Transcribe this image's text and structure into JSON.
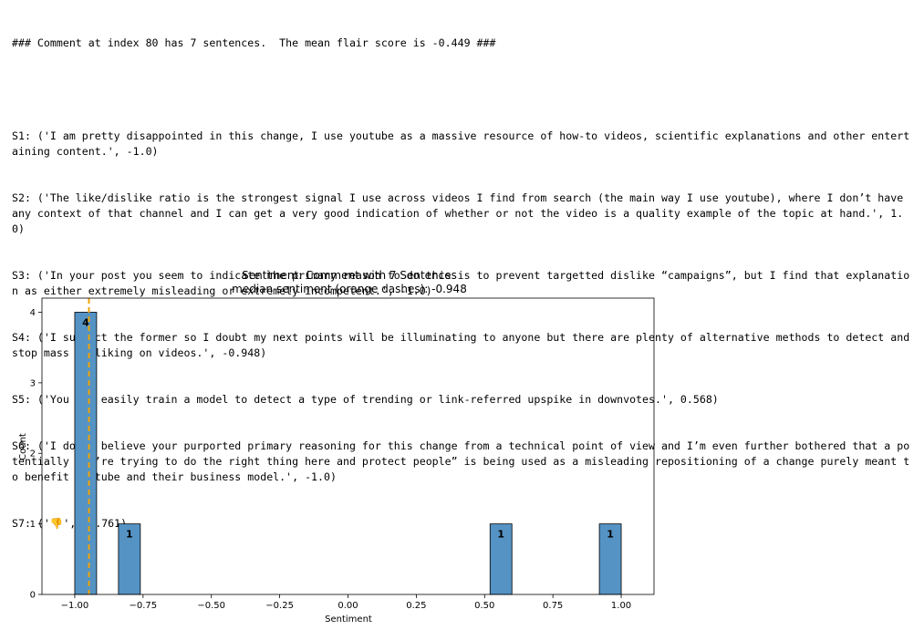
{
  "output": {
    "header": "### Comment at index 80 has 7 sentences.  The mean flair score is -0.449 ###",
    "sentences": [
      "S1: ('I am pretty disappointed in this change, I use youtube as a massive resource of how-to videos, scientific explanations and other entertaining content.', -1.0)",
      "S2: ('The like/dislike ratio is the strongest signal I use across videos I find from search (the main way I use youtube), where I don’t have any context of that channel and I can get a very good indication of whether or not the video is a quality example of the topic at hand.', 1.0)",
      "S3: ('In your post you seem to indicate the primary reason to do this is to prevent targetted dislike “campaigns”, but I find that explanation as either extremely misleading or extremely incompetent.', -1.0)",
      "S4: ('I suspect the former so I doubt my next points will be illuminating to anyone but there are plenty of alternative methods to detect and stop mass disliking on videos.', -0.948)",
      "S5: ('You can easily train a model to detect a type of trending or link-referred upspike in downvotes.', 0.568)",
      "S6: ('I don’t believe your purported primary reasoning for this change from a technical point of view and I’m even further bothered that a potentially “we’re trying to do the right thing here and protect people” is being used as a misleading repositioning of a change purely meant to benefit youtube and their business model.', -1.0)",
      "S7: ('👎', -0.761)"
    ]
  },
  "chart_data": {
    "type": "bar",
    "title": "Sentiment: Comment with 7 Sentences",
    "subtitle": "median sentiment (orange dashes): -0.948",
    "xlabel": "Sentiment",
    "ylabel": "Count",
    "xlim": [
      -1.12,
      1.12
    ],
    "ylim": [
      0,
      4.2
    ],
    "xticks": [
      -1.0,
      -0.75,
      -0.5,
      -0.25,
      0.0,
      0.25,
      0.5,
      0.75,
      1.0
    ],
    "xtick_labels": [
      "−1.00",
      "−0.75",
      "−0.50",
      "−0.25",
      "0.00",
      "0.25",
      "0.50",
      "0.75",
      "1.00"
    ],
    "yticks": [
      0,
      1,
      2,
      3,
      4
    ],
    "bins": [
      {
        "x0": -1.0,
        "x1": -0.92,
        "count": 4,
        "label": "4"
      },
      {
        "x0": -0.84,
        "x1": -0.76,
        "count": 1,
        "label": "1"
      },
      {
        "x0": 0.52,
        "x1": 0.6,
        "count": 1,
        "label": "1"
      },
      {
        "x0": 0.92,
        "x1": 1.0,
        "count": 1,
        "label": "1"
      }
    ],
    "median": -0.948,
    "colors": {
      "bar": "#5593c4",
      "bar_edge": "#000000",
      "median_line": "#f0a30a"
    }
  }
}
